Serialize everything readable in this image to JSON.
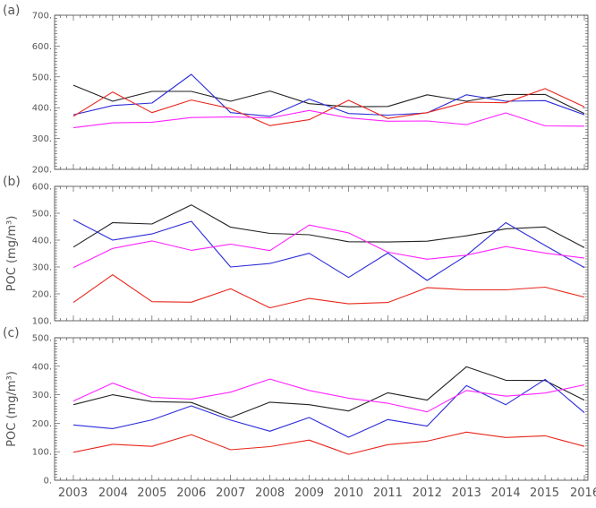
{
  "chart_data": {
    "type": "line",
    "x": [
      "2003",
      "2004",
      "2005",
      "2006",
      "2007",
      "2008",
      "2009",
      "2010",
      "2011",
      "2012",
      "2013",
      "2014",
      "2015",
      "2016"
    ],
    "x_tick_labels": [
      "2003",
      "2004",
      "2005",
      "2006",
      "2007",
      "2008",
      "2009",
      "2010",
      "2011",
      "2012",
      "2013",
      "2014",
      "2015",
      "2016"
    ],
    "colors": [
      "#222222",
      "#2b2bd9",
      "#e8261c",
      "#ff22ff"
    ],
    "panels": [
      {
        "label": "(a)",
        "ylabel": "",
        "ylim": [
          200,
          700
        ],
        "yticks": [
          "200.",
          "300.",
          "400.",
          "500.",
          "600.",
          "700."
        ],
        "series": [
          {
            "color": "#222222",
            "values": [
              473,
              421,
              453,
              453,
              421,
              454,
              413,
              403,
              404,
              442,
              421,
              443,
              443,
              381
            ]
          },
          {
            "color": "#2b2bd9",
            "values": [
              377,
              407,
              415,
              508,
              384,
              372,
              428,
              381,
              376,
              383,
              442,
              421,
              423,
              377
            ]
          },
          {
            "color": "#e8261c",
            "values": [
              372,
              451,
              384,
              425,
              397,
              342,
              361,
              424,
              365,
              384,
              418,
              416,
              462,
              403
            ]
          },
          {
            "color": "#ff22ff",
            "values": [
              335,
              351,
              353,
              368,
              370,
              367,
              391,
              367,
              356,
              357,
              345,
              383,
              341,
              340
            ]
          }
        ]
      },
      {
        "label": "(b)",
        "ylabel": "POC (mg/m³)",
        "ylim": [
          100,
          600
        ],
        "yticks": [
          "100.",
          "200.",
          "300.",
          "400.",
          "500.",
          "600."
        ],
        "series": [
          {
            "color": "#222222",
            "values": [
              374,
              465,
              460,
              531,
              448,
              425,
              420,
              394,
              393,
              396,
              416,
              442,
              449,
              372
            ]
          },
          {
            "color": "#2b2bd9",
            "values": [
              476,
              400,
              423,
              470,
              300,
              313,
              351,
              261,
              352,
              250,
              343,
              465,
              380,
              298
            ]
          },
          {
            "color": "#e8261c",
            "values": [
              168,
              271,
              171,
              169,
              219,
              148,
              183,
              163,
              168,
              223,
              215,
              215,
              225,
              188
            ]
          },
          {
            "color": "#ff22ff",
            "values": [
              298,
              369,
              397,
              362,
              385,
              361,
              456,
              427,
              355,
              329,
              344,
              376,
              352,
              333
            ]
          }
        ]
      },
      {
        "label": "(c)",
        "ylabel": "POC (mg/m³)",
        "ylim": [
          0,
          500
        ],
        "yticks": [
          "0.",
          "100.",
          "200.",
          "300.",
          "400.",
          "500."
        ],
        "series": [
          {
            "color": "#222222",
            "values": [
              265,
              300,
              276,
              273,
              220,
              274,
              265,
              243,
              307,
              281,
              398,
              351,
              350,
              281
            ]
          },
          {
            "color": "#2b2bd9",
            "values": [
              194,
              181,
              212,
              261,
              211,
              172,
              220,
              151,
              213,
              190,
              332,
              265,
              354,
              237
            ]
          },
          {
            "color": "#e8261c",
            "values": [
              98,
              126,
              119,
              160,
              107,
              118,
              141,
              91,
              125,
              137,
              169,
              150,
              156,
              119
            ]
          },
          {
            "color": "#ff22ff",
            "values": [
              278,
              341,
              291,
              285,
              309,
              355,
              315,
              288,
              270,
              240,
              315,
              295,
              306,
              335
            ]
          }
        ]
      }
    ]
  }
}
